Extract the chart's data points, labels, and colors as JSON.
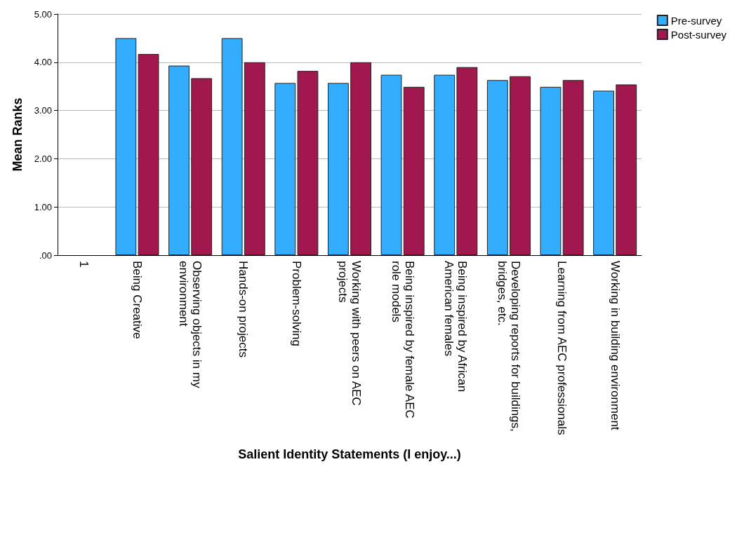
{
  "chart_data": {
    "type": "bar",
    "xlabel": "Salient Identity Statements (I enjoy...)",
    "ylabel": "Mean Ranks",
    "categories": [
      "1",
      "Being Creative",
      "Observing objects in my environment",
      "Hands-on projects",
      "Problem-solving",
      "Working with peers on AEC projects",
      "Being inspired by female AEC role models",
      "Being inspired by African American females",
      "Developing reports for buildings, bridges, etc.",
      "Learning from AEC professionals",
      "Working in building environment"
    ],
    "series": [
      {
        "name": "Pre-survey",
        "color": "#33adff",
        "values": [
          null,
          4.5,
          3.93,
          4.5,
          3.57,
          3.57,
          3.74,
          3.74,
          3.63,
          3.49,
          3.41
        ]
      },
      {
        "name": "Post-survey",
        "color": "#a0184e",
        "values": [
          null,
          4.17,
          3.67,
          4.0,
          3.82,
          4.0,
          3.49,
          3.9,
          3.71,
          3.63,
          3.54
        ]
      }
    ],
    "ylim": [
      0,
      5
    ],
    "yticks": [
      {
        "value": 0,
        "label": ".00"
      },
      {
        "value": 1,
        "label": "1.00"
      },
      {
        "value": 2,
        "label": "2.00"
      },
      {
        "value": 3,
        "label": "3.00"
      },
      {
        "value": 4,
        "label": "4.00"
      },
      {
        "value": 5,
        "label": "5.00"
      }
    ],
    "grid": "y",
    "legend": "top right"
  }
}
